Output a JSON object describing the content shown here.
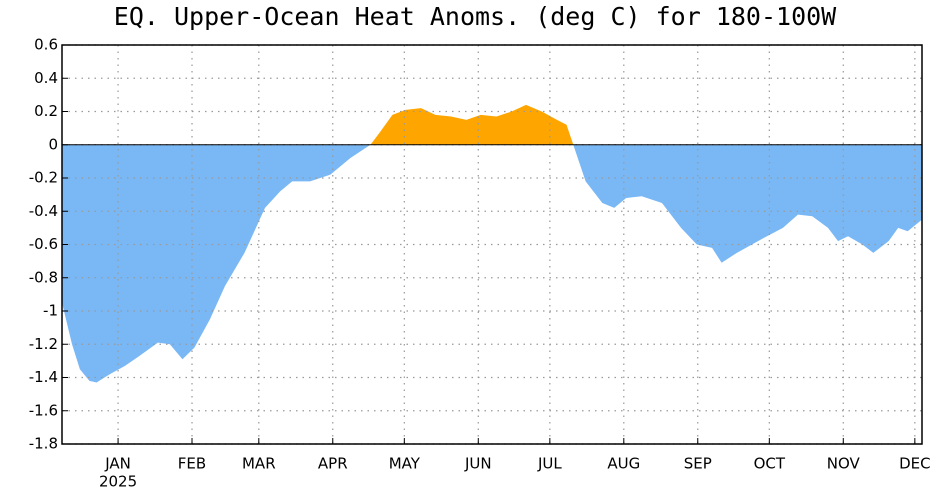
{
  "chart_data": {
    "type": "area",
    "title": "EQ. Upper-Ocean Heat Anoms. (deg C) for 180-100W",
    "year_label": "2025",
    "positive_color": "#ffa500",
    "negative_color": "#7ab8f5",
    "grid": true,
    "xlim": [
      -9.5,
      351
    ],
    "xticks": [
      {
        "value": 14,
        "label": "JAN"
      },
      {
        "value": 45,
        "label": "FEB"
      },
      {
        "value": 73,
        "label": "MAR"
      },
      {
        "value": 104,
        "label": "APR"
      },
      {
        "value": 134,
        "label": "MAY"
      },
      {
        "value": 165,
        "label": "JUN"
      },
      {
        "value": 195,
        "label": "JUL"
      },
      {
        "value": 226,
        "label": "AUG"
      },
      {
        "value": 257,
        "label": "SEP"
      },
      {
        "value": 287,
        "label": "OCT"
      },
      {
        "value": 318,
        "label": "NOV"
      },
      {
        "value": 348,
        "label": "DEC"
      }
    ],
    "ylim": [
      -1.8,
      0.6
    ],
    "yticks": [
      0.6,
      0.4,
      0.2,
      0,
      -0.2,
      -0.4,
      -0.6,
      -0.8,
      -1,
      -1.2,
      -1.4,
      -1.6,
      -1.8
    ],
    "x": [
      -9.5,
      -5.3,
      -2,
      2,
      5,
      10.6,
      16.9,
      23,
      30.7,
      35.7,
      41,
      46,
      52.5,
      58.8,
      67,
      75.6,
      82,
      87,
      94.5,
      103,
      111.4,
      119.8,
      124,
      129,
      134.5,
      141,
      147,
      153.6,
      160,
      166,
      172.6,
      179,
      185,
      191.6,
      198,
      202,
      206,
      210,
      217,
      222,
      227,
      233.5,
      242,
      250,
      256.6,
      263,
      267,
      273.4,
      279.7,
      286,
      292.7,
      299,
      305,
      311.6,
      315.8,
      320,
      326,
      330.6,
      337,
      341,
      345,
      351
    ],
    "values": [
      -0.95,
      -1.2,
      -1.35,
      -1.42,
      -1.43,
      -1.38,
      -1.33,
      -1.27,
      -1.19,
      -1.2,
      -1.29,
      -1.22,
      -1.05,
      -0.85,
      -0.65,
      -0.38,
      -0.28,
      -0.22,
      -0.22,
      -0.18,
      -0.08,
      0,
      0.08,
      0.18,
      0.21,
      0.22,
      0.18,
      0.17,
      0.15,
      0.18,
      0.17,
      0.2,
      0.24,
      0.2,
      0.15,
      0.12,
      -0.05,
      -0.22,
      -0.35,
      -0.38,
      -0.32,
      -0.31,
      -0.35,
      -0.5,
      -0.6,
      -0.62,
      -0.71,
      -0.65,
      -0.6,
      -0.55,
      -0.5,
      -0.42,
      -0.43,
      -0.5,
      -0.58,
      -0.55,
      -0.6,
      -0.65,
      -0.58,
      -0.5,
      -0.52,
      -0.45
    ]
  }
}
